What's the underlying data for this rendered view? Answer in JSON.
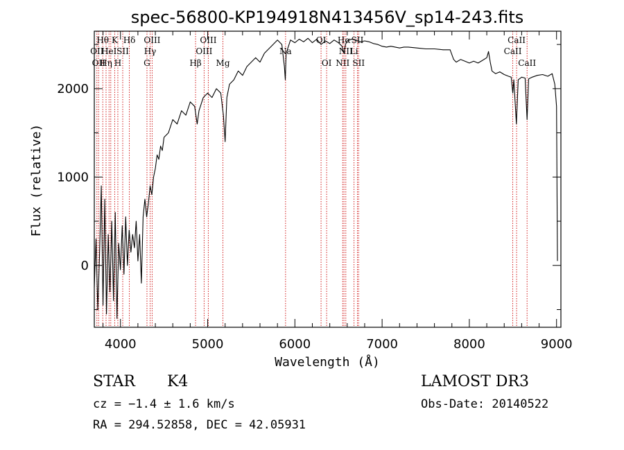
{
  "chart_data": {
    "type": "line",
    "title": "spec-56800-KP194918N413456V_sp14-243.fits",
    "xlabel": "Wavelength (Å)",
    "ylabel": "Flux (relative)",
    "xlim": [
      3700,
      9050
    ],
    "ylim": [
      -700,
      2650
    ],
    "xticks": [
      4000,
      5000,
      6000,
      7000,
      8000,
      9000
    ],
    "xticks_minor": [
      3800,
      4200,
      4400,
      4600,
      4800,
      5200,
      5400,
      5600,
      5800,
      6200,
      6400,
      6600,
      6800,
      7200,
      7400,
      7600,
      7800,
      8200,
      8400,
      8600,
      8800
    ],
    "yticks": [
      0,
      1000,
      2000
    ],
    "yticks_minor": [
      -500,
      500,
      1500,
      2500
    ],
    "series": [
      {
        "name": "spectrum",
        "points": [
          [
            3700,
            -250
          ],
          [
            3720,
            300
          ],
          [
            3740,
            -500
          ],
          [
            3760,
            100
          ],
          [
            3780,
            900
          ],
          [
            3800,
            -450
          ],
          [
            3820,
            750
          ],
          [
            3840,
            -550
          ],
          [
            3860,
            350
          ],
          [
            3880,
            -300
          ],
          [
            3900,
            500
          ],
          [
            3920,
            -400
          ],
          [
            3940,
            600
          ],
          [
            3960,
            -600
          ],
          [
            3980,
            250
          ],
          [
            4000,
            -50
          ],
          [
            4020,
            450
          ],
          [
            4040,
            -100
          ],
          [
            4060,
            550
          ],
          [
            4080,
            0
          ],
          [
            4100,
            400
          ],
          [
            4120,
            150
          ],
          [
            4140,
            350
          ],
          [
            4160,
            200
          ],
          [
            4180,
            500
          ],
          [
            4200,
            50
          ],
          [
            4220,
            350
          ],
          [
            4240,
            -200
          ],
          [
            4260,
            550
          ],
          [
            4280,
            750
          ],
          [
            4300,
            550
          ],
          [
            4320,
            700
          ],
          [
            4340,
            900
          ],
          [
            4360,
            800
          ],
          [
            4380,
            1000
          ],
          [
            4400,
            1100
          ],
          [
            4420,
            1250
          ],
          [
            4440,
            1200
          ],
          [
            4460,
            1350
          ],
          [
            4480,
            1300
          ],
          [
            4500,
            1450
          ],
          [
            4550,
            1500
          ],
          [
            4600,
            1650
          ],
          [
            4650,
            1600
          ],
          [
            4700,
            1750
          ],
          [
            4750,
            1700
          ],
          [
            4800,
            1850
          ],
          [
            4850,
            1800
          ],
          [
            4880,
            1600
          ],
          [
            4900,
            1750
          ],
          [
            4950,
            1900
          ],
          [
            5000,
            1950
          ],
          [
            5050,
            1900
          ],
          [
            5100,
            2000
          ],
          [
            5150,
            1950
          ],
          [
            5180,
            1700
          ],
          [
            5200,
            1400
          ],
          [
            5220,
            1900
          ],
          [
            5250,
            2050
          ],
          [
            5300,
            2100
          ],
          [
            5350,
            2200
          ],
          [
            5400,
            2150
          ],
          [
            5450,
            2250
          ],
          [
            5500,
            2300
          ],
          [
            5550,
            2350
          ],
          [
            5600,
            2300
          ],
          [
            5650,
            2400
          ],
          [
            5700,
            2450
          ],
          [
            5750,
            2500
          ],
          [
            5800,
            2550
          ],
          [
            5850,
            2500
          ],
          [
            5880,
            2250
          ],
          [
            5890,
            2100
          ],
          [
            5900,
            2400
          ],
          [
            5950,
            2550
          ],
          [
            6000,
            2520
          ],
          [
            6050,
            2560
          ],
          [
            6100,
            2530
          ],
          [
            6150,
            2570
          ],
          [
            6200,
            2520
          ],
          [
            6250,
            2560
          ],
          [
            6300,
            2500
          ],
          [
            6350,
            2540
          ],
          [
            6400,
            2510
          ],
          [
            6450,
            2550
          ],
          [
            6500,
            2520
          ],
          [
            6540,
            2480
          ],
          [
            6563,
            2400
          ],
          [
            6580,
            2500
          ],
          [
            6600,
            2540
          ],
          [
            6650,
            2560
          ],
          [
            6700,
            2550
          ],
          [
            6750,
            2530
          ],
          [
            6800,
            2540
          ],
          [
            6850,
            2530
          ],
          [
            6900,
            2510
          ],
          [
            6950,
            2500
          ],
          [
            7000,
            2480
          ],
          [
            7050,
            2470
          ],
          [
            7100,
            2480
          ],
          [
            7150,
            2470
          ],
          [
            7200,
            2460
          ],
          [
            7250,
            2470
          ],
          [
            7300,
            2470
          ],
          [
            7400,
            2460
          ],
          [
            7500,
            2450
          ],
          [
            7600,
            2450
          ],
          [
            7700,
            2440
          ],
          [
            7780,
            2440
          ],
          [
            7820,
            2330
          ],
          [
            7850,
            2300
          ],
          [
            7900,
            2330
          ],
          [
            7950,
            2310
          ],
          [
            8000,
            2290
          ],
          [
            8050,
            2310
          ],
          [
            8100,
            2290
          ],
          [
            8150,
            2320
          ],
          [
            8200,
            2350
          ],
          [
            8220,
            2420
          ],
          [
            8240,
            2300
          ],
          [
            8260,
            2200
          ],
          [
            8300,
            2170
          ],
          [
            8350,
            2190
          ],
          [
            8400,
            2160
          ],
          [
            8450,
            2140
          ],
          [
            8480,
            2130
          ],
          [
            8498,
            1950
          ],
          [
            8510,
            2100
          ],
          [
            8540,
            1600
          ],
          [
            8560,
            2100
          ],
          [
            8600,
            2130
          ],
          [
            8640,
            2120
          ],
          [
            8662,
            1650
          ],
          [
            8680,
            2110
          ],
          [
            8720,
            2130
          ],
          [
            8780,
            2150
          ],
          [
            8840,
            2160
          ],
          [
            8900,
            2140
          ],
          [
            8950,
            2170
          ],
          [
            8980,
            2050
          ],
          [
            9000,
            1800
          ],
          [
            9005,
            1000
          ],
          [
            9010,
            50
          ]
        ]
      }
    ],
    "line_markers": [
      {
        "wl": 3730,
        "labels": [
          "",
          "OII"
        ]
      },
      {
        "wl": 3750,
        "labels": [
          "",
          "",
          "OII"
        ]
      },
      {
        "wl": 3797,
        "labels": [
          "Hθ"
        ]
      },
      {
        "wl": 3835,
        "labels": [
          "",
          "",
          "Hη"
        ]
      },
      {
        "wl": 3869,
        "labels": [
          "",
          "HeI"
        ]
      },
      {
        "wl": 3889,
        "labels": [
          "",
          "",
          ""
        ]
      },
      {
        "wl": 3934,
        "labels": [
          "K"
        ]
      },
      {
        "wl": 3970,
        "labels": [
          "",
          "",
          "H"
        ]
      },
      {
        "wl": 4026,
        "labels": [
          "",
          "SII"
        ]
      },
      {
        "wl": 4102,
        "labels": [
          "Hδ"
        ]
      },
      {
        "wl": 4304,
        "labels": [
          "",
          "",
          "G"
        ]
      },
      {
        "wl": 4340,
        "labels": [
          "",
          "Hγ"
        ]
      },
      {
        "wl": 4363,
        "labels": [
          "OIII"
        ]
      },
      {
        "wl": 4861,
        "labels": [
          "",
          "",
          "Hβ"
        ]
      },
      {
        "wl": 4959,
        "labels": [
          "",
          "OIII"
        ]
      },
      {
        "wl": 5007,
        "labels": [
          "OIII"
        ]
      },
      {
        "wl": 5175,
        "labels": [
          "",
          "",
          "Mg"
        ]
      },
      {
        "wl": 5893,
        "labels": [
          "",
          "Na"
        ]
      },
      {
        "wl": 6300,
        "labels": [
          "OI"
        ]
      },
      {
        "wl": 6364,
        "labels": [
          "",
          "",
          "OI"
        ]
      },
      {
        "wl": 6548,
        "labels": [
          "",
          "",
          "NII"
        ]
      },
      {
        "wl": 6563,
        "labels": [
          "Hα"
        ]
      },
      {
        "wl": 6584,
        "labels": [
          "",
          "NII"
        ]
      },
      {
        "wl": 6678,
        "labels": [
          "",
          "Li"
        ]
      },
      {
        "wl": 6717,
        "labels": [
          "SII"
        ]
      },
      {
        "wl": 6731,
        "labels": [
          "",
          "",
          "SII"
        ]
      },
      {
        "wl": 8498,
        "labels": [
          "",
          "CaII"
        ]
      },
      {
        "wl": 8542,
        "labels": [
          "CaII"
        ]
      },
      {
        "wl": 8662,
        "labels": [
          "",
          "",
          "CaII"
        ]
      }
    ]
  },
  "info": {
    "object_class": "STAR",
    "subclass": "K4",
    "redshift_line": "cz = −1.4 ± 1.6 km/s",
    "coords_line": "RA = 294.52858, DEC =  42.05931",
    "survey": "LAMOST DR3",
    "obs_date": "Obs-Date: 20140522"
  },
  "colors": {
    "line_marker": "#cc0000",
    "spectrum": "#000000",
    "axes": "#000000"
  }
}
